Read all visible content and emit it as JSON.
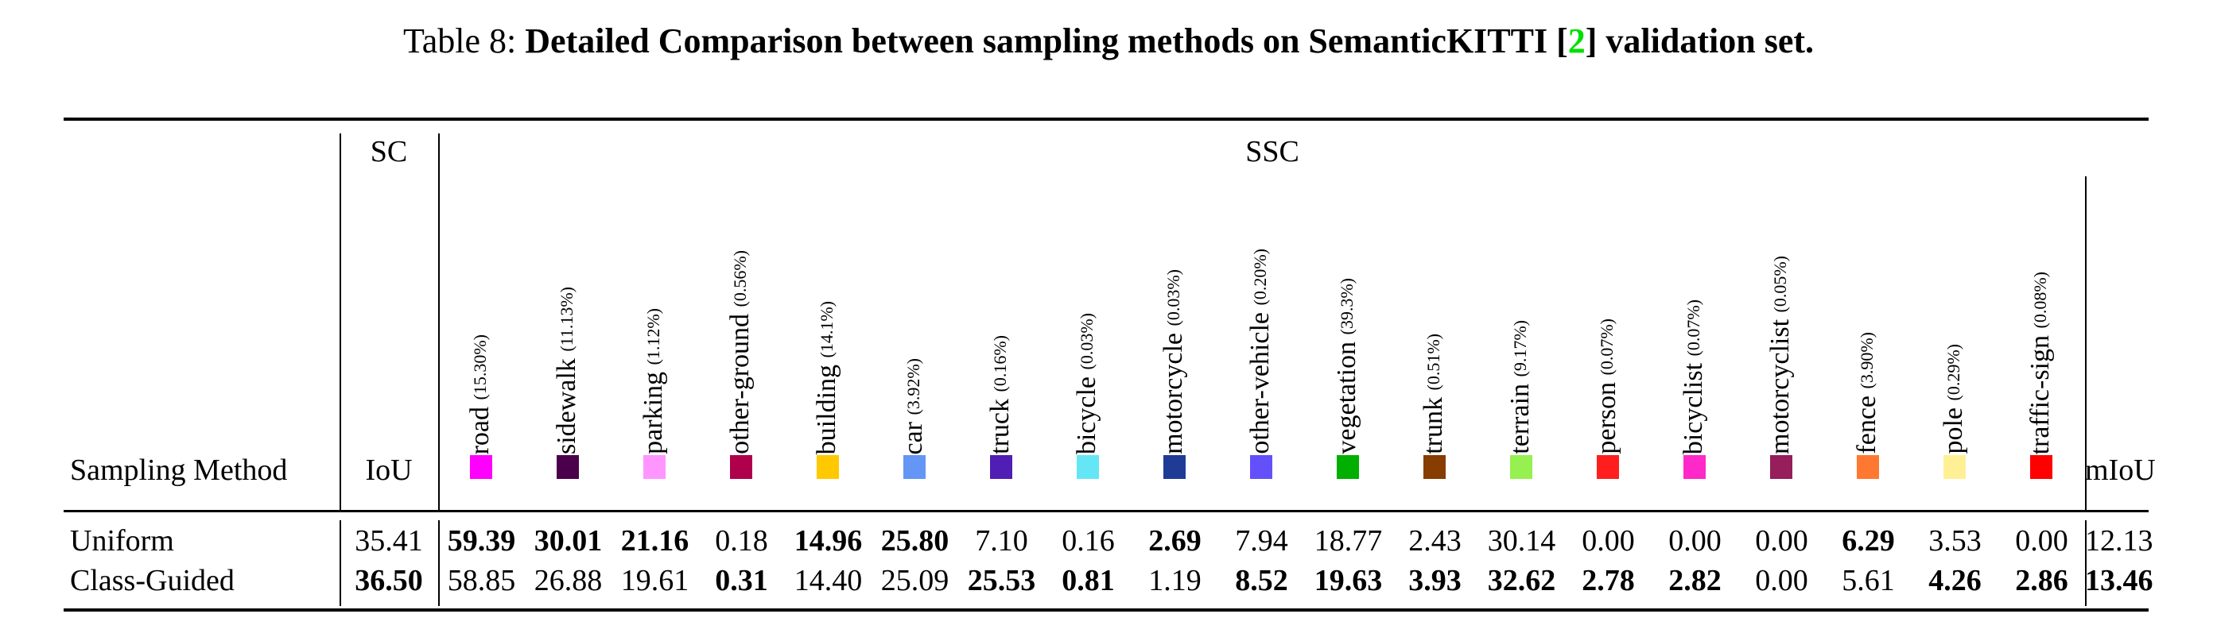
{
  "title": {
    "prefix": "Table 8: ",
    "bold_pre": "Detailed Comparison between sampling methods on SemanticKITTI [",
    "ref": "2",
    "bold_post": "] validation set."
  },
  "header": {
    "sc": "SC",
    "ssc": "SSC",
    "method": "Sampling Method",
    "iou": "IoU",
    "miou": "mIoU"
  },
  "classes": [
    {
      "name": "road",
      "pct": "(15.30%)",
      "color": "#ff00ff"
    },
    {
      "name": "sidewalk",
      "pct": "(11.13%)",
      "color": "#4b004b"
    },
    {
      "name": "parking",
      "pct": "(1.12%)",
      "color": "#ff96ff"
    },
    {
      "name": "other-ground",
      "pct": "(0.56%)",
      "color": "#af004b"
    },
    {
      "name": "building",
      "pct": "(14.1%)",
      "color": "#ffc800"
    },
    {
      "name": "car",
      "pct": "(3.92%)",
      "color": "#6496f5"
    },
    {
      "name": "truck",
      "pct": "(0.16%)",
      "color": "#501eb4"
    },
    {
      "name": "bicycle",
      "pct": "(0.03%)",
      "color": "#64e6f5"
    },
    {
      "name": "motorcycle",
      "pct": "(0.03%)",
      "color": "#1e3c96"
    },
    {
      "name": "other-vehicle",
      "pct": "(0.20%)",
      "color": "#6450fa"
    },
    {
      "name": "vegetation",
      "pct": "(39.3%)",
      "color": "#00af00"
    },
    {
      "name": "trunk",
      "pct": "(0.51%)",
      "color": "#873c00"
    },
    {
      "name": "terrain",
      "pct": "(9.17%)",
      "color": "#96f050"
    },
    {
      "name": "person",
      "pct": "(0.07%)",
      "color": "#ff1e1e"
    },
    {
      "name": "bicyclist",
      "pct": "(0.07%)",
      "color": "#ff28c8"
    },
    {
      "name": "motorcyclist",
      "pct": "(0.05%)",
      "color": "#961e5a"
    },
    {
      "name": "fence",
      "pct": "(3.90%)",
      "color": "#ff7832"
    },
    {
      "name": "pole",
      "pct": "(0.29%)",
      "color": "#fff096"
    },
    {
      "name": "traffic-sign",
      "pct": "(0.08%)",
      "color": "#ff0000"
    }
  ],
  "rows": [
    {
      "method": "Uniform",
      "iou": {
        "v": "35.41",
        "b": false
      },
      "values": [
        {
          "v": "59.39",
          "b": true
        },
        {
          "v": "30.01",
          "b": true
        },
        {
          "v": "21.16",
          "b": true
        },
        {
          "v": "0.18",
          "b": false
        },
        {
          "v": "14.96",
          "b": true
        },
        {
          "v": "25.80",
          "b": true
        },
        {
          "v": "7.10",
          "b": false
        },
        {
          "v": "0.16",
          "b": false
        },
        {
          "v": "2.69",
          "b": true
        },
        {
          "v": "7.94",
          "b": false
        },
        {
          "v": "18.77",
          "b": false
        },
        {
          "v": "2.43",
          "b": false
        },
        {
          "v": "30.14",
          "b": false
        },
        {
          "v": "0.00",
          "b": false
        },
        {
          "v": "0.00",
          "b": false
        },
        {
          "v": "0.00",
          "b": false
        },
        {
          "v": "6.29",
          "b": true
        },
        {
          "v": "3.53",
          "b": false
        },
        {
          "v": "0.00",
          "b": false
        }
      ],
      "miou": {
        "v": "12.13",
        "b": false
      }
    },
    {
      "method": "Class-Guided",
      "iou": {
        "v": "36.50",
        "b": true
      },
      "values": [
        {
          "v": "58.85",
          "b": false
        },
        {
          "v": "26.88",
          "b": false
        },
        {
          "v": "19.61",
          "b": false
        },
        {
          "v": "0.31",
          "b": true
        },
        {
          "v": "14.40",
          "b": false
        },
        {
          "v": "25.09",
          "b": false
        },
        {
          "v": "25.53",
          "b": true
        },
        {
          "v": "0.81",
          "b": true
        },
        {
          "v": "1.19",
          "b": false
        },
        {
          "v": "8.52",
          "b": true
        },
        {
          "v": "19.63",
          "b": true
        },
        {
          "v": "3.93",
          "b": true
        },
        {
          "v": "32.62",
          "b": true
        },
        {
          "v": "2.78",
          "b": true
        },
        {
          "v": "2.82",
          "b": true
        },
        {
          "v": "0.00",
          "b": false
        },
        {
          "v": "5.61",
          "b": false
        },
        {
          "v": "4.26",
          "b": true
        },
        {
          "v": "2.86",
          "b": true
        }
      ],
      "miou": {
        "v": "13.46",
        "b": true
      }
    }
  ]
}
